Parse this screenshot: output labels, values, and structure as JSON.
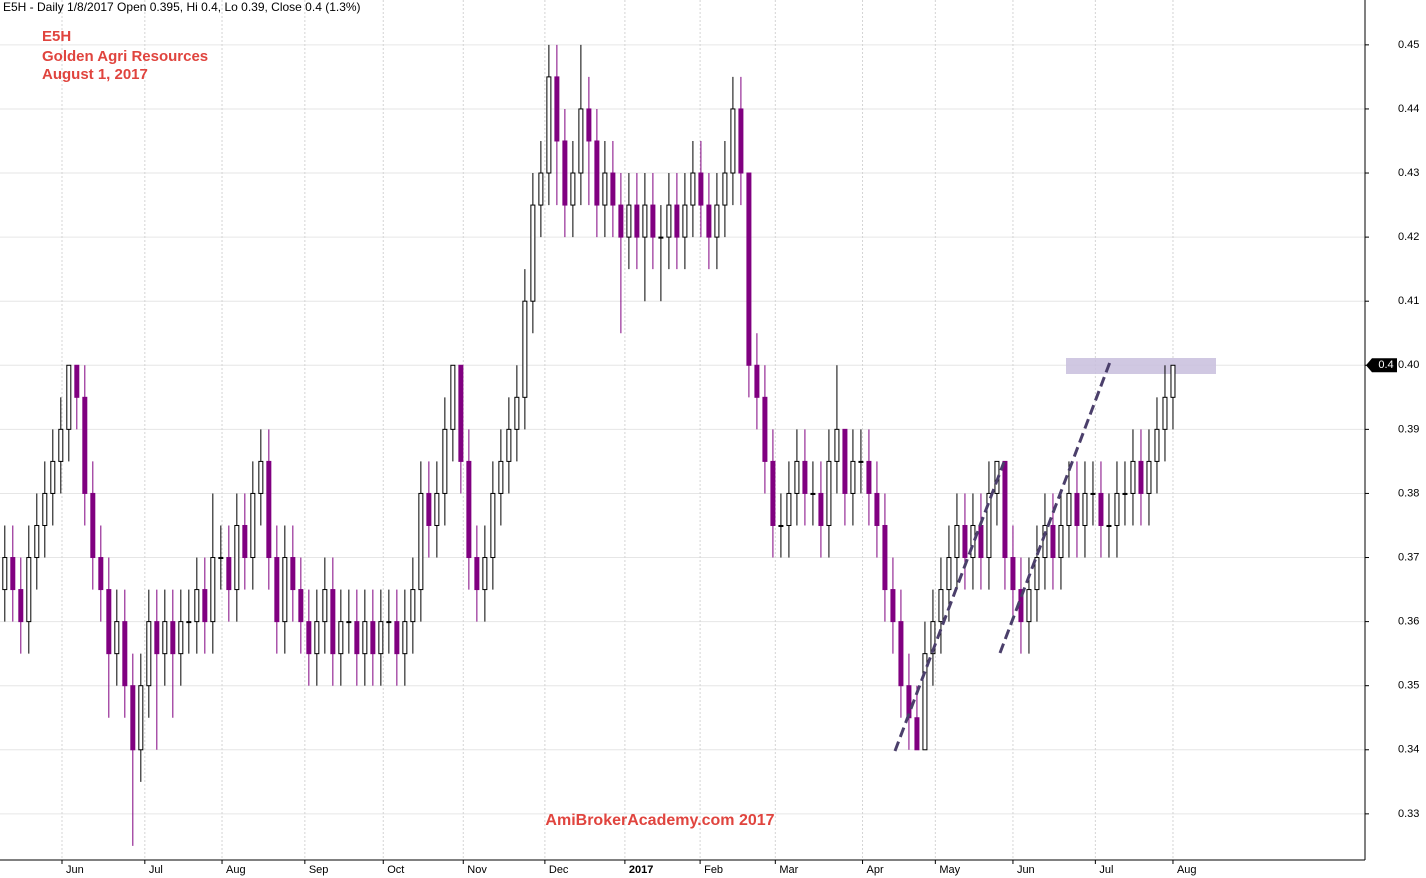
{
  "chart_data": {
    "type": "candlestick",
    "header": "E5H - Daily 1/8/2017 Open 0.395, Hi 0.4, Lo 0.39, Close 0.4 (1.3%)",
    "title": "E5H",
    "subtitle": "Golden Agri Resources",
    "date": "August 1, 2017",
    "watermark": "AmiBrokerAcademy.com  2017",
    "up_color": "#000000",
    "down_color": "#800080",
    "grid": true,
    "xlim": [
      -0.6,
      170
    ],
    "xticks": [
      {
        "value": 7.15,
        "label": "Jun"
      },
      {
        "value": 17.5,
        "label": "Jul"
      },
      {
        "value": 27.15,
        "label": "Aug"
      },
      {
        "value": 37.5,
        "label": "Sep"
      },
      {
        "value": 47.3,
        "label": "Oct"
      },
      {
        "value": 57.3,
        "label": "Nov"
      },
      {
        "value": 67.5,
        "label": "Dec"
      },
      {
        "value": 77.5,
        "label": "2017"
      },
      {
        "value": 86.9,
        "label": "Feb"
      },
      {
        "value": 96.3,
        "label": "Mar"
      },
      {
        "value": 107.2,
        "label": "Apr"
      },
      {
        "value": 116.3,
        "label": "May"
      },
      {
        "value": 126,
        "label": "Jun"
      },
      {
        "value": 136.3,
        "label": "Jul"
      },
      {
        "value": 146,
        "label": "Aug"
      }
    ],
    "xtick_bold": [
      7
    ],
    "ylim": [
      0.3228,
      0.457
    ],
    "yticks": [
      0.33,
      0.34,
      0.35,
      0.36,
      0.37,
      0.38,
      0.39,
      {
        "value": 0.4,
        "label": "0.40"
      },
      0.41,
      0.42,
      0.43,
      0.44,
      0.45
    ],
    "open": [
      0.365,
      0.37,
      0.365,
      0.36,
      0.37,
      0.375,
      0.38,
      0.385,
      0.39,
      0.4,
      0.395,
      0.38,
      0.37,
      0.365,
      0.355,
      0.36,
      0.35,
      0.34,
      0.35,
      0.36,
      0.355,
      0.36,
      0.355,
      0.36,
      0.36,
      0.365,
      0.36,
      0.37,
      0.37,
      0.365,
      0.375,
      0.37,
      0.38,
      0.385,
      0.37,
      0.36,
      0.37,
      0.365,
      0.36,
      0.355,
      0.36,
      0.365,
      0.355,
      0.36,
      0.36,
      0.355,
      0.36,
      0.355,
      0.36,
      0.36,
      0.355,
      0.36,
      0.365,
      0.38,
      0.375,
      0.38,
      0.39,
      0.4,
      0.385,
      0.37,
      0.365,
      0.37,
      0.38,
      0.385,
      0.39,
      0.395,
      0.41,
      0.425,
      0.43,
      0.445,
      0.435,
      0.425,
      0.43,
      0.44,
      0.435,
      0.425,
      0.43,
      0.425,
      0.42,
      0.425,
      0.42,
      0.425,
      0.42,
      0.42,
      0.425,
      0.42,
      0.425,
      0.43,
      0.425,
      0.42,
      0.425,
      0.43,
      0.44,
      0.43,
      0.4,
      0.395,
      0.385,
      0.375,
      0.375,
      0.38,
      0.385,
      0.38,
      0.38,
      0.375,
      0.385,
      0.39,
      0.38,
      0.385,
      0.385,
      0.38,
      0.375,
      0.365,
      0.36,
      0.35,
      0.345,
      0.34,
      0.355,
      0.36,
      0.365,
      0.37,
      0.375,
      0.37,
      0.375,
      0.37,
      0.38,
      0.385,
      0.37,
      0.365,
      0.36,
      0.365,
      0.37,
      0.375,
      0.37,
      0.375,
      0.38,
      0.375,
      0.38,
      0.38,
      0.375,
      0.375,
      0.38,
      0.38,
      0.385,
      0.38,
      0.385,
      0.39,
      0.395
    ],
    "high": [
      0.375,
      0.375,
      0.37,
      0.375,
      0.38,
      0.385,
      0.39,
      0.395,
      0.4,
      0.4,
      0.4,
      0.385,
      0.375,
      0.37,
      0.365,
      0.365,
      0.355,
      0.355,
      0.365,
      0.365,
      0.365,
      0.365,
      0.365,
      0.365,
      0.37,
      0.37,
      0.38,
      0.375,
      0.375,
      0.38,
      0.38,
      0.385,
      0.39,
      0.39,
      0.375,
      0.375,
      0.375,
      0.37,
      0.365,
      0.365,
      0.37,
      0.37,
      0.365,
      0.365,
      0.365,
      0.365,
      0.365,
      0.365,
      0.365,
      0.365,
      0.365,
      0.37,
      0.385,
      0.385,
      0.385,
      0.395,
      0.4,
      0.4,
      0.39,
      0.375,
      0.375,
      0.385,
      0.39,
      0.395,
      0.4,
      0.415,
      0.43,
      0.435,
      0.45,
      0.45,
      0.44,
      0.435,
      0.45,
      0.445,
      0.44,
      0.435,
      0.435,
      0.43,
      0.43,
      0.43,
      0.43,
      0.43,
      0.425,
      0.43,
      0.43,
      0.43,
      0.435,
      0.435,
      0.43,
      0.43,
      0.435,
      0.445,
      0.445,
      0.43,
      0.405,
      0.4,
      0.39,
      0.38,
      0.385,
      0.39,
      0.39,
      0.385,
      0.385,
      0.39,
      0.4,
      0.39,
      0.39,
      0.39,
      0.39,
      0.385,
      0.38,
      0.37,
      0.365,
      0.355,
      0.35,
      0.36,
      0.365,
      0.37,
      0.375,
      0.38,
      0.38,
      0.38,
      0.38,
      0.385,
      0.385,
      0.385,
      0.375,
      0.37,
      0.37,
      0.375,
      0.38,
      0.38,
      0.38,
      0.385,
      0.385,
      0.385,
      0.385,
      0.385,
      0.38,
      0.385,
      0.385,
      0.39,
      0.39,
      0.39,
      0.395,
      0.4,
      0.4
    ],
    "low": [
      0.36,
      0.36,
      0.355,
      0.355,
      0.365,
      0.37,
      0.375,
      0.38,
      0.385,
      0.39,
      0.375,
      0.365,
      0.36,
      0.345,
      0.35,
      0.345,
      0.325,
      0.335,
      0.345,
      0.34,
      0.35,
      0.345,
      0.35,
      0.355,
      0.355,
      0.355,
      0.355,
      0.365,
      0.36,
      0.36,
      0.365,
      0.365,
      0.375,
      0.365,
      0.355,
      0.355,
      0.36,
      0.355,
      0.35,
      0.35,
      0.355,
      0.35,
      0.35,
      0.355,
      0.35,
      0.35,
      0.35,
      0.35,
      0.355,
      0.35,
      0.35,
      0.355,
      0.36,
      0.37,
      0.37,
      0.375,
      0.385,
      0.38,
      0.365,
      0.36,
      0.36,
      0.365,
      0.375,
      0.38,
      0.385,
      0.39,
      0.405,
      0.42,
      0.425,
      0.425,
      0.42,
      0.42,
      0.425,
      0.425,
      0.42,
      0.42,
      0.42,
      0.405,
      0.415,
      0.415,
      0.41,
      0.415,
      0.41,
      0.415,
      0.415,
      0.415,
      0.42,
      0.42,
      0.415,
      0.415,
      0.42,
      0.425,
      0.425,
      0.395,
      0.39,
      0.38,
      0.37,
      0.37,
      0.37,
      0.375,
      0.375,
      0.375,
      0.37,
      0.37,
      0.38,
      0.375,
      0.375,
      0.38,
      0.375,
      0.37,
      0.36,
      0.355,
      0.345,
      0.34,
      0.34,
      0.34,
      0.35,
      0.355,
      0.36,
      0.365,
      0.365,
      0.365,
      0.365,
      0.365,
      0.375,
      0.365,
      0.36,
      0.355,
      0.355,
      0.36,
      0.365,
      0.365,
      0.365,
      0.37,
      0.37,
      0.37,
      0.375,
      0.37,
      0.37,
      0.37,
      0.375,
      0.375,
      0.375,
      0.375,
      0.38,
      0.385,
      0.39
    ],
    "close": [
      0.37,
      0.365,
      0.36,
      0.37,
      0.375,
      0.38,
      0.385,
      0.39,
      0.4,
      0.395,
      0.38,
      0.37,
      0.365,
      0.355,
      0.36,
      0.35,
      0.34,
      0.35,
      0.36,
      0.355,
      0.36,
      0.355,
      0.36,
      0.36,
      0.365,
      0.36,
      0.37,
      0.37,
      0.365,
      0.375,
      0.37,
      0.38,
      0.385,
      0.37,
      0.36,
      0.37,
      0.365,
      0.36,
      0.355,
      0.36,
      0.365,
      0.355,
      0.36,
      0.36,
      0.355,
      0.36,
      0.355,
      0.36,
      0.36,
      0.355,
      0.36,
      0.365,
      0.38,
      0.375,
      0.38,
      0.39,
      0.4,
      0.385,
      0.37,
      0.365,
      0.37,
      0.38,
      0.385,
      0.39,
      0.395,
      0.41,
      0.425,
      0.43,
      0.445,
      0.435,
      0.425,
      0.43,
      0.44,
      0.435,
      0.425,
      0.43,
      0.425,
      0.42,
      0.425,
      0.42,
      0.425,
      0.42,
      0.42,
      0.425,
      0.42,
      0.425,
      0.43,
      0.425,
      0.42,
      0.425,
      0.43,
      0.44,
      0.43,
      0.4,
      0.395,
      0.385,
      0.375,
      0.375,
      0.38,
      0.385,
      0.38,
      0.38,
      0.375,
      0.385,
      0.39,
      0.38,
      0.385,
      0.385,
      0.38,
      0.375,
      0.365,
      0.36,
      0.35,
      0.345,
      0.34,
      0.355,
      0.36,
      0.365,
      0.37,
      0.375,
      0.37,
      0.375,
      0.37,
      0.38,
      0.385,
      0.37,
      0.365,
      0.36,
      0.365,
      0.37,
      0.375,
      0.37,
      0.375,
      0.38,
      0.375,
      0.38,
      0.38,
      0.375,
      0.375,
      0.38,
      0.38,
      0.385,
      0.38,
      0.385,
      0.39,
      0.395,
      0.4
    ]
  }
}
